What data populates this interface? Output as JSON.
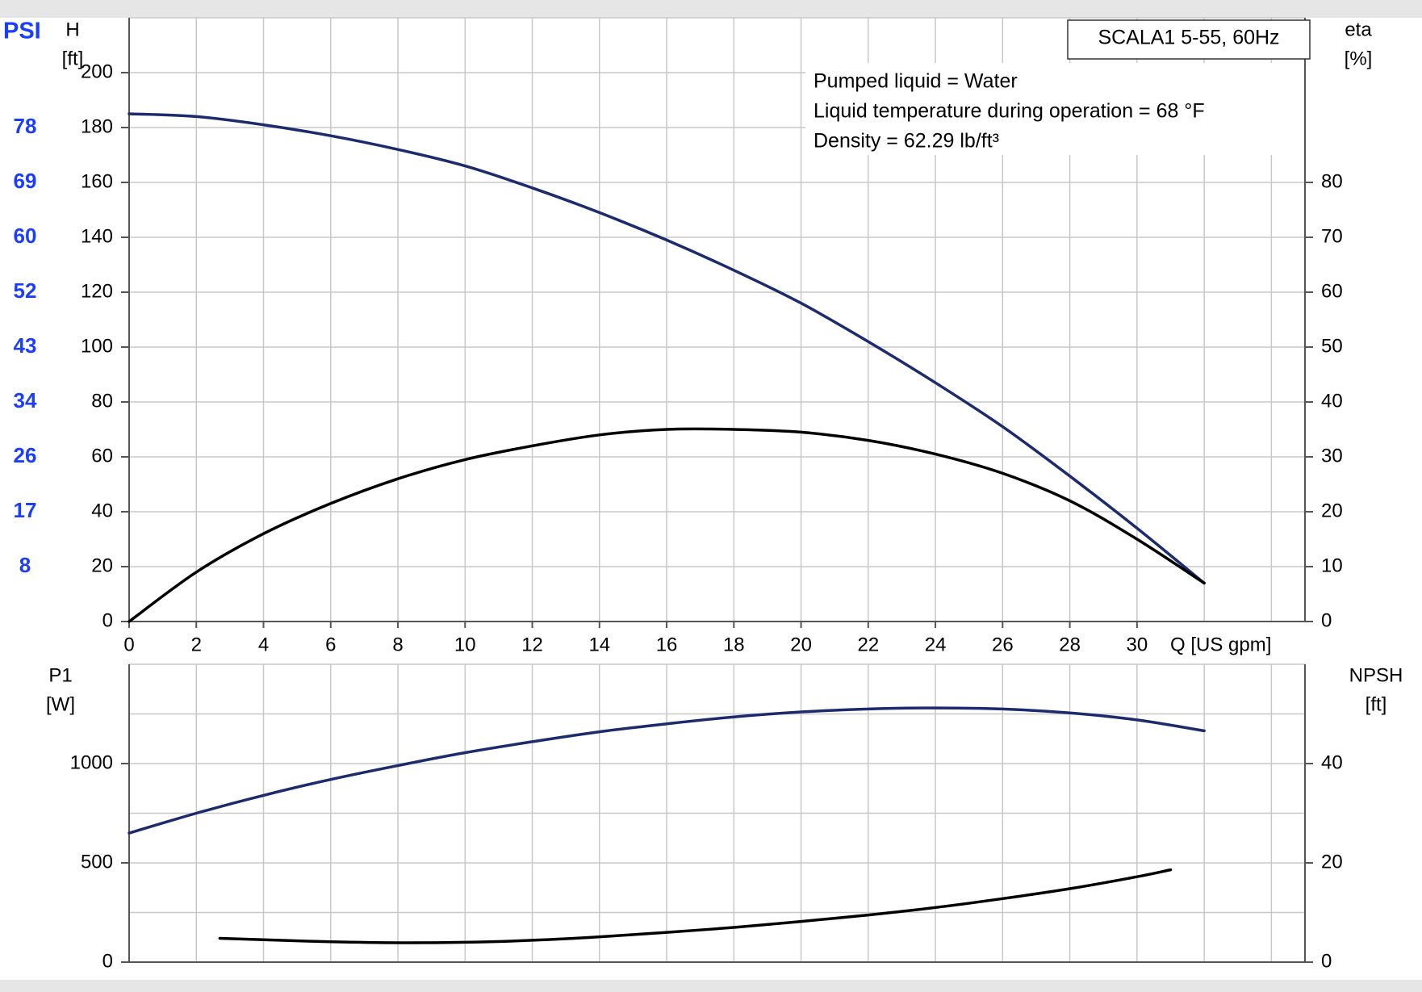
{
  "colors": {
    "page_bg": "#e6e6e6",
    "plot_bg": "#ffffff",
    "grid": "#c8c8c8",
    "axis": "#555555",
    "navy": "#1c2a6e",
    "black": "#000000",
    "psi": "#1a3dff"
  },
  "chart_data": [
    {
      "type": "line",
      "panel": "upper",
      "title": "SCALA1 5-55, 60Hz",
      "annotations": [
        "Pumped liquid = Water",
        "Liquid temperature during operation = 68 °F",
        "Density = 62.29 lb/ft³"
      ],
      "xlabel": "Q [US gpm]",
      "x_ticks": [
        0,
        2,
        4,
        6,
        8,
        10,
        12,
        14,
        16,
        18,
        20,
        22,
        24,
        26,
        28,
        30
      ],
      "xlim": [
        0,
        35
      ],
      "left_axis": {
        "label_top": "H",
        "label_unit": "[ft]",
        "ticks": [
          0,
          20,
          40,
          60,
          80,
          100,
          120,
          140,
          160,
          180,
          200
        ],
        "ylim": [
          0,
          220
        ]
      },
      "right_axis": {
        "label_top": "eta",
        "label_unit": "[%]",
        "ticks": [
          0,
          10,
          20,
          30,
          40,
          50,
          60,
          70,
          80
        ],
        "ylim": [
          0,
          110
        ]
      },
      "psi_axis": {
        "label": "PSI",
        "ticks": [
          {
            "label": "8",
            "h_ft": 20
          },
          {
            "label": "17",
            "h_ft": 40
          },
          {
            "label": "26",
            "h_ft": 60
          },
          {
            "label": "34",
            "h_ft": 80
          },
          {
            "label": "43",
            "h_ft": 100
          },
          {
            "label": "52",
            "h_ft": 120
          },
          {
            "label": "60",
            "h_ft": 140
          },
          {
            "label": "69",
            "h_ft": 160
          },
          {
            "label": "78",
            "h_ft": 180
          }
        ]
      },
      "series": [
        {
          "axis": "left",
          "color": "navy",
          "x": [
            0,
            2,
            4,
            6,
            8,
            10,
            12,
            14,
            16,
            18,
            20,
            22,
            24,
            26,
            28,
            30,
            32
          ],
          "y": [
            185,
            184,
            181,
            177,
            172,
            166,
            158,
            149,
            139,
            128,
            116,
            102,
            87,
            71,
            53,
            34,
            14
          ]
        },
        {
          "axis": "right",
          "color": "black",
          "x": [
            0,
            2,
            4,
            6,
            8,
            10,
            12,
            14,
            16,
            18,
            20,
            22,
            24,
            26,
            28,
            30,
            32
          ],
          "y": [
            0,
            9,
            16,
            21.5,
            26,
            29.5,
            32,
            34,
            35,
            35,
            34.5,
            33,
            30.5,
            27,
            22,
            15,
            7
          ]
        }
      ]
    },
    {
      "type": "line",
      "panel": "lower",
      "xlim": [
        0,
        35
      ],
      "left_axis": {
        "label_top": "P1",
        "label_unit": "[W]",
        "ticks": [
          0,
          500,
          1000
        ],
        "ylim": [
          0,
          1500
        ]
      },
      "right_axis": {
        "label_top": "NPSH",
        "label_unit": "[ft]",
        "ticks": [
          0,
          20,
          40
        ],
        "ylim": [
          0,
          60
        ]
      },
      "series": [
        {
          "axis": "left",
          "color": "navy",
          "x": [
            0,
            2,
            4,
            6,
            8,
            10,
            12,
            14,
            16,
            18,
            20,
            22,
            24,
            26,
            28,
            30,
            32
          ],
          "y": [
            650,
            750,
            840,
            920,
            990,
            1055,
            1110,
            1160,
            1200,
            1235,
            1260,
            1275,
            1280,
            1275,
            1255,
            1220,
            1165
          ]
        },
        {
          "axis": "right",
          "color": "black",
          "x": [
            2.7,
            4,
            6,
            8,
            10,
            12,
            14,
            16,
            18,
            20,
            22,
            24,
            26,
            28,
            30,
            31
          ],
          "y": [
            4.8,
            4.5,
            4.1,
            3.9,
            4.0,
            4.4,
            5.1,
            6.0,
            7.0,
            8.2,
            9.5,
            11.0,
            12.8,
            14.8,
            17.2,
            18.6
          ]
        }
      ]
    }
  ]
}
